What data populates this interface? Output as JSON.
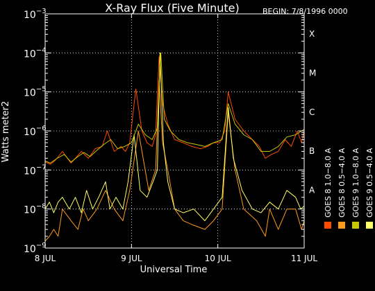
{
  "chart_data": {
    "type": "line",
    "title": "X-Ray Flux (Five Minute)",
    "begin_label": "BEGIN: 7/8/1996 0000",
    "xlabel": "Universal Time",
    "ylabel": "Watts meter2",
    "x_unit": "days since 8 JUL 1996 0000 UT",
    "xlim": [
      0,
      3
    ],
    "ylim": [
      1e-09,
      0.001
    ],
    "y_scale": "log",
    "grid": true,
    "x_ticks": [
      {
        "value": 0,
        "label": "8 JUL"
      },
      {
        "value": 1,
        "label": "9 JUL"
      },
      {
        "value": 2,
        "label": "10 JUL"
      },
      {
        "value": 3,
        "label": "11 JUL"
      }
    ],
    "y_ticks": [
      {
        "value": 1e-09,
        "base": "10",
        "exp": "−9"
      },
      {
        "value": 1e-08,
        "base": "10",
        "exp": "−8"
      },
      {
        "value": 1e-07,
        "base": "10",
        "exp": "−7"
      },
      {
        "value": 1e-06,
        "base": "10",
        "exp": "−6"
      },
      {
        "value": 1e-05,
        "base": "10",
        "exp": "−5"
      },
      {
        "value": 0.0001,
        "base": "10",
        "exp": "−4"
      },
      {
        "value": 0.001,
        "base": "10",
        "exp": "−3"
      }
    ],
    "flare_classes": [
      {
        "label": "A",
        "value": 1e-08
      },
      {
        "label": "B",
        "value": 1e-07
      },
      {
        "label": "C",
        "value": 1e-06
      },
      {
        "label": "M",
        "value": 1e-05
      },
      {
        "label": "X",
        "value": 0.0001
      }
    ],
    "legend_position": "right-vertical",
    "series": [
      {
        "name": "GOES 8 1.0−8.0 A",
        "color": "#ff4a00",
        "x": [
          0,
          0.06,
          0.12,
          0.2,
          0.3,
          0.35,
          0.42,
          0.5,
          0.58,
          0.66,
          0.72,
          0.8,
          0.88,
          0.93,
          0.98,
          1.05,
          1.12,
          1.18,
          1.24,
          1.28,
          1.32,
          1.36,
          1.42,
          1.5,
          1.6,
          1.7,
          1.8,
          1.88,
          1.95,
          2.02,
          2.08,
          2.12,
          2.2,
          2.3,
          2.4,
          2.48,
          2.55,
          2.62,
          2.7,
          2.78,
          2.85,
          2.92,
          2.97,
          3.0
        ],
        "y": [
          1.6e-07,
          1.4e-07,
          1.8e-07,
          3e-07,
          1.5e-07,
          2e-07,
          3e-07,
          2e-07,
          3.5e-07,
          4e-07,
          1e-06,
          3e-07,
          4e-07,
          3e-07,
          5e-07,
          1.2e-05,
          1e-06,
          5e-07,
          4e-07,
          8e-07,
          8e-05,
          5e-06,
          1.5e-06,
          6e-07,
          5e-07,
          4e-07,
          3.5e-07,
          4e-07,
          5e-07,
          5e-07,
          1e-06,
          1e-05,
          2e-06,
          1e-06,
          6e-07,
          4e-07,
          2e-07,
          2.5e-07,
          3e-07,
          6e-07,
          4e-07,
          1e-06,
          5e-07,
          1e-06
        ]
      },
      {
        "name": "GOES 8 0.5−4.0 A",
        "color": "#ff9a1a",
        "x": [
          0,
          0.05,
          0.1,
          0.15,
          0.2,
          0.3,
          0.38,
          0.44,
          0.5,
          0.6,
          0.7,
          0.8,
          0.9,
          0.98,
          1.08,
          1.2,
          1.28,
          1.32,
          1.36,
          1.42,
          1.5,
          1.6,
          1.7,
          1.85,
          1.95,
          2.05,
          2.12,
          2.2,
          2.3,
          2.45,
          2.55,
          2.6,
          2.7,
          2.8,
          2.9,
          2.97,
          3.0
        ],
        "y": [
          1.5e-09,
          2e-09,
          3e-09,
          2e-09,
          1e-08,
          5e-09,
          3e-09,
          1e-08,
          5e-09,
          1e-08,
          3e-08,
          1e-08,
          5e-09,
          3e-08,
          1e-06,
          3e-08,
          1e-07,
          2e-05,
          5e-07,
          1e-07,
          1e-08,
          5e-09,
          4e-09,
          3e-09,
          5e-09,
          1e-08,
          3e-06,
          1e-07,
          1e-08,
          5e-09,
          2e-09,
          1e-08,
          3e-09,
          1e-08,
          1e-08,
          3e-09,
          5e-09
        ]
      },
      {
        "name": "GOES 9 0.5−4.0 A",
        "color": "#ffff66",
        "x": [
          0,
          0.05,
          0.1,
          0.15,
          0.2,
          0.28,
          0.35,
          0.42,
          0.48,
          0.55,
          0.62,
          0.7,
          0.75,
          0.82,
          0.9,
          0.96,
          1.03,
          1.1,
          1.18,
          1.25,
          1.3,
          1.33,
          1.37,
          1.42,
          1.5,
          1.6,
          1.72,
          1.85,
          1.95,
          2.05,
          2.12,
          2.18,
          2.28,
          2.4,
          2.5,
          2.6,
          2.7,
          2.8,
          2.9,
          2.96,
          3.0
        ],
        "y": [
          1e-08,
          1.5e-08,
          8e-09,
          1.5e-08,
          2e-08,
          1e-08,
          2e-08,
          8e-09,
          3e-08,
          1e-08,
          2e-08,
          5e-08,
          1e-08,
          2e-08,
          1e-08,
          5e-08,
          8e-07,
          3e-08,
          2e-08,
          5e-08,
          1e-07,
          0.0001,
          5e-07,
          5e-08,
          1e-08,
          8e-09,
          1e-08,
          5e-09,
          1e-08,
          2e-08,
          4e-06,
          2e-07,
          3e-08,
          1e-08,
          8e-09,
          1.5e-08,
          1e-08,
          3e-08,
          2e-08,
          1e-08,
          1.2e-08
        ]
      },
      {
        "name": "GOES 9 1.0−8.0 A",
        "color": "#c8c800",
        "x": [
          0,
          0.06,
          0.14,
          0.22,
          0.3,
          0.38,
          0.45,
          0.52,
          0.6,
          0.68,
          0.76,
          0.84,
          0.92,
          1.0,
          1.08,
          1.16,
          1.24,
          1.3,
          1.34,
          1.38,
          1.45,
          1.55,
          1.65,
          1.75,
          1.85,
          1.95,
          2.05,
          2.12,
          2.2,
          2.3,
          2.4,
          2.5,
          2.6,
          2.7,
          2.8,
          2.9,
          3.0
        ],
        "y": [
          1.7e-07,
          1.5e-07,
          2e-07,
          2.5e-07,
          1.6e-07,
          2.2e-07,
          2.8e-07,
          2.2e-07,
          3.2e-07,
          4.5e-07,
          6e-07,
          3.5e-07,
          4e-07,
          5e-07,
          1.5e-06,
          8e-07,
          6e-07,
          1.2e-06,
          0.0001,
          2e-06,
          1e-06,
          6e-07,
          5e-07,
          4.5e-07,
          4e-07,
          5e-07,
          6e-07,
          5e-06,
          1.5e-06,
          8e-07,
          6e-07,
          3e-07,
          3e-07,
          4e-07,
          7e-07,
          8e-07,
          1.1e-06
        ]
      }
    ]
  }
}
